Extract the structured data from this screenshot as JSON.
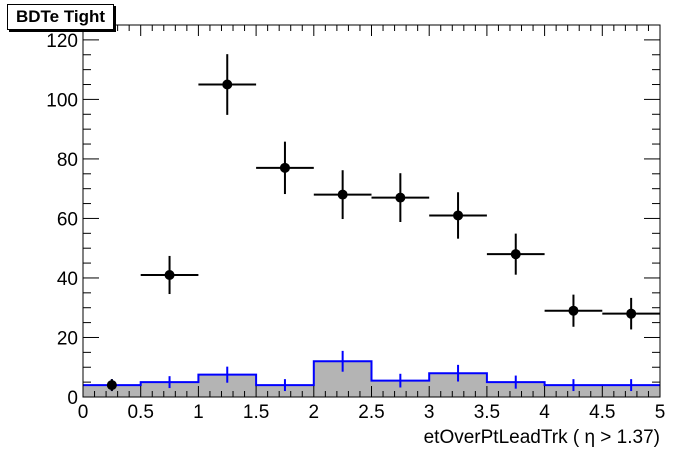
{
  "title": "BDTe Tight",
  "chart_data": {
    "type": "scatter",
    "title": "BDTe Tight",
    "xlabel": "etOverPtLeadTrk ( η > 1.37)",
    "ylabel": "",
    "xlim": [
      0,
      5
    ],
    "ylim": [
      0,
      125
    ],
    "x_ticks": [
      "0",
      "0.5",
      "1",
      "1.5",
      "2",
      "2.5",
      "3",
      "3.5",
      "4",
      "4.5",
      "5"
    ],
    "y_ticks": [
      "0",
      "20",
      "40",
      "60",
      "80",
      "100",
      "120"
    ],
    "grid": false,
    "series": [
      {
        "kind": "points",
        "color": "#000000",
        "bin_edges": [
          0,
          0.5,
          1,
          1.5,
          2,
          2.5,
          3,
          3.5,
          4,
          4.5,
          5
        ],
        "x": [
          0.25,
          0.75,
          1.25,
          1.75,
          2.25,
          2.75,
          3.25,
          3.75,
          4.25,
          4.75
        ],
        "y": [
          4,
          41,
          105,
          77,
          68,
          67,
          61,
          48,
          29,
          28
        ],
        "yerr": [
          2,
          6.4,
          10.2,
          8.8,
          8.2,
          8.2,
          7.8,
          6.9,
          5.4,
          5.3
        ],
        "xerr_bins": [
          false,
          true,
          true,
          true,
          true,
          true,
          true,
          true,
          true,
          true
        ]
      },
      {
        "kind": "histogram",
        "color": "#0000ff",
        "fill": "#b4b4b4",
        "bin_edges": [
          0,
          0.5,
          1,
          1.5,
          2,
          2.5,
          3,
          3.5,
          4,
          4.5,
          5
        ],
        "values": [
          4,
          5,
          7.5,
          4,
          12,
          5.5,
          8,
          5,
          4,
          4
        ],
        "yerr": [
          2,
          2,
          2.7,
          2,
          3.5,
          2.3,
          2.8,
          2.2,
          2,
          2
        ]
      }
    ]
  }
}
